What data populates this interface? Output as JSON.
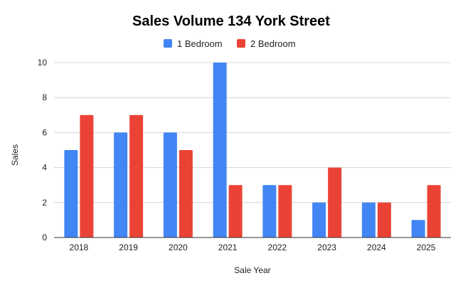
{
  "chart_data": {
    "type": "bar",
    "title": "Sales Volume 134 York Street",
    "xlabel": "Sale Year",
    "ylabel": "Sales",
    "categories": [
      "2018",
      "2019",
      "2020",
      "2021",
      "2022",
      "2023",
      "2024",
      "2025"
    ],
    "series": [
      {
        "name": "1 Bedroom",
        "color": "#4285f4",
        "values": [
          5,
          6,
          6,
          10,
          3,
          2,
          2,
          1
        ]
      },
      {
        "name": "2 Bedroom",
        "color": "#ea4335",
        "values": [
          7,
          7,
          5,
          3,
          3,
          4,
          2,
          3
        ]
      }
    ],
    "ylim": [
      0,
      10
    ],
    "yticks": [
      0,
      2,
      4,
      6,
      8,
      10
    ],
    "grid": true,
    "legend_position": "top"
  }
}
